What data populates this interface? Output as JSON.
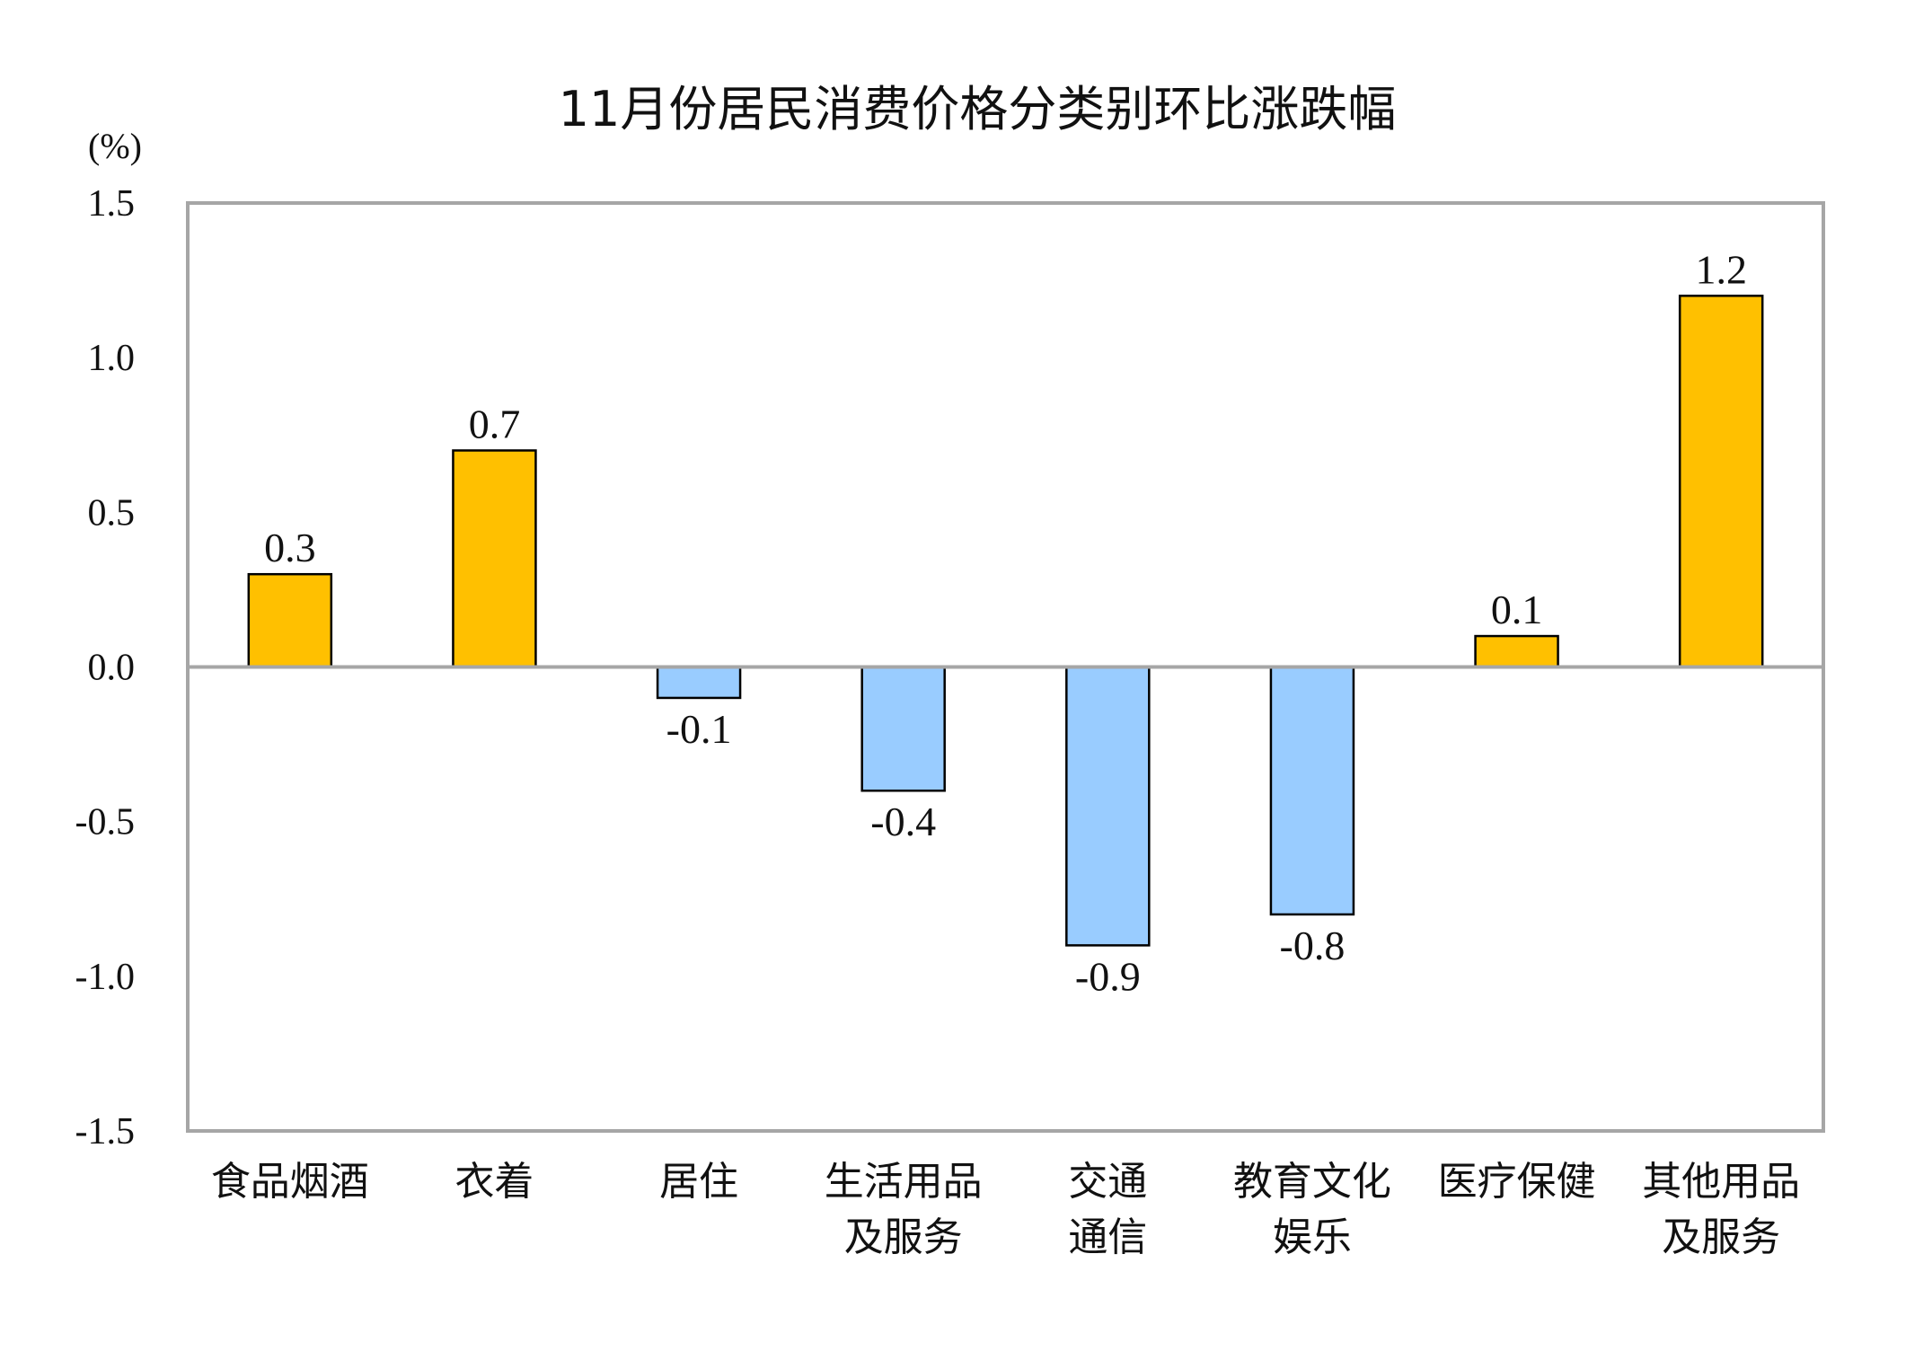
{
  "chart_data": {
    "type": "bar",
    "title": "11月份居民消费价格分类别环比涨跌幅",
    "ylabel": "(%)",
    "xlabel": "",
    "ylim": [
      -1.5,
      1.5
    ],
    "yticks": [
      "1.5",
      "1.0",
      "0.5",
      "0.0",
      "-0.5",
      "-1.0",
      "-1.5"
    ],
    "ytick_values": [
      1.5,
      1.0,
      0.5,
      0.0,
      -0.5,
      -1.0,
      -1.5
    ],
    "categories": [
      [
        "食品烟酒"
      ],
      [
        "衣着"
      ],
      [
        "居住"
      ],
      [
        "生活用品",
        "及服务"
      ],
      [
        "交通",
        "通信"
      ],
      [
        "教育文化",
        "娱乐"
      ],
      [
        "医疗保健"
      ],
      [
        "其他用品",
        "及服务"
      ]
    ],
    "values": [
      0.3,
      0.7,
      -0.1,
      -0.4,
      -0.9,
      -0.8,
      0.1,
      1.2
    ],
    "data_labels": [
      "0.3",
      "0.7",
      "-0.1",
      "-0.4",
      "-0.9",
      "-0.8",
      "0.1",
      "1.2"
    ],
    "grid": false,
    "legend": "none",
    "colors": {
      "positive": "#FFC000",
      "negative": "#99CCFF",
      "frame": "#A6A6A6",
      "bar_border": "#000000"
    }
  }
}
